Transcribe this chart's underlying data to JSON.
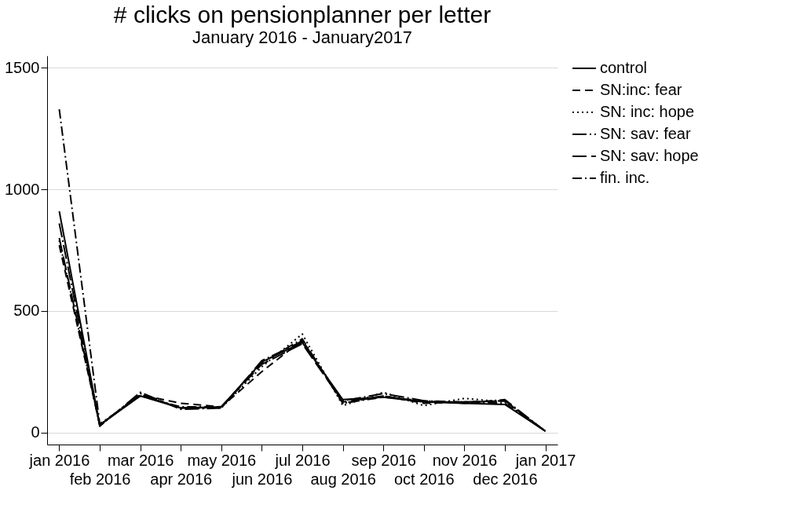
{
  "chart_data": {
    "type": "line",
    "title": "# clicks on pensionplanner per letter",
    "subtitle": "January 2016 - January2017",
    "categories": [
      "jan 2016",
      "feb 2016",
      "mar 2016",
      "apr 2016",
      "may 2016",
      "jun 2016",
      "jul 2016",
      "aug 2016",
      "sep 2016",
      "oct 2016",
      "nov 2016",
      "dec 2016",
      "jan 2017"
    ],
    "series": [
      {
        "name": "control",
        "color": "#000000",
        "line_style": "solid",
        "values": [
          910,
          30,
          150,
          100,
          105,
          290,
          370,
          135,
          145,
          125,
          120,
          115,
          5
        ]
      },
      {
        "name": "SN:inc: fear",
        "color": "#000000",
        "line_style": "dashed",
        "values": [
          770,
          30,
          155,
          120,
          105,
          250,
          380,
          120,
          150,
          120,
          125,
          130,
          5
        ]
      },
      {
        "name": "SN: inc: hope",
        "color": "#000000",
        "line_style": "dotted",
        "values": [
          790,
          30,
          160,
          100,
          100,
          270,
          405,
          110,
          165,
          110,
          140,
          125,
          5
        ]
      },
      {
        "name": "SN: sav: fear",
        "color": "#000000",
        "line_style": "longdashdot",
        "values": [
          860,
          25,
          165,
          95,
          100,
          295,
          375,
          130,
          160,
          130,
          120,
          135,
          5
        ]
      },
      {
        "name": "SN: sav: hope",
        "color": "#000000",
        "line_style": "longdash",
        "values": [
          800,
          30,
          155,
          100,
          105,
          280,
          365,
          125,
          150,
          125,
          125,
          130,
          5
        ]
      },
      {
        "name": "fin. inc.",
        "color": "#000000",
        "line_style": "dashdot",
        "values": [
          1330,
          35,
          150,
          105,
          105,
          285,
          385,
          120,
          145,
          130,
          125,
          120,
          5
        ]
      }
    ],
    "ylim": [
      -50,
      1550
    ],
    "yticks": [
      0,
      500,
      1000,
      1500
    ],
    "grid": "y",
    "legend": "right",
    "marker": "none"
  }
}
